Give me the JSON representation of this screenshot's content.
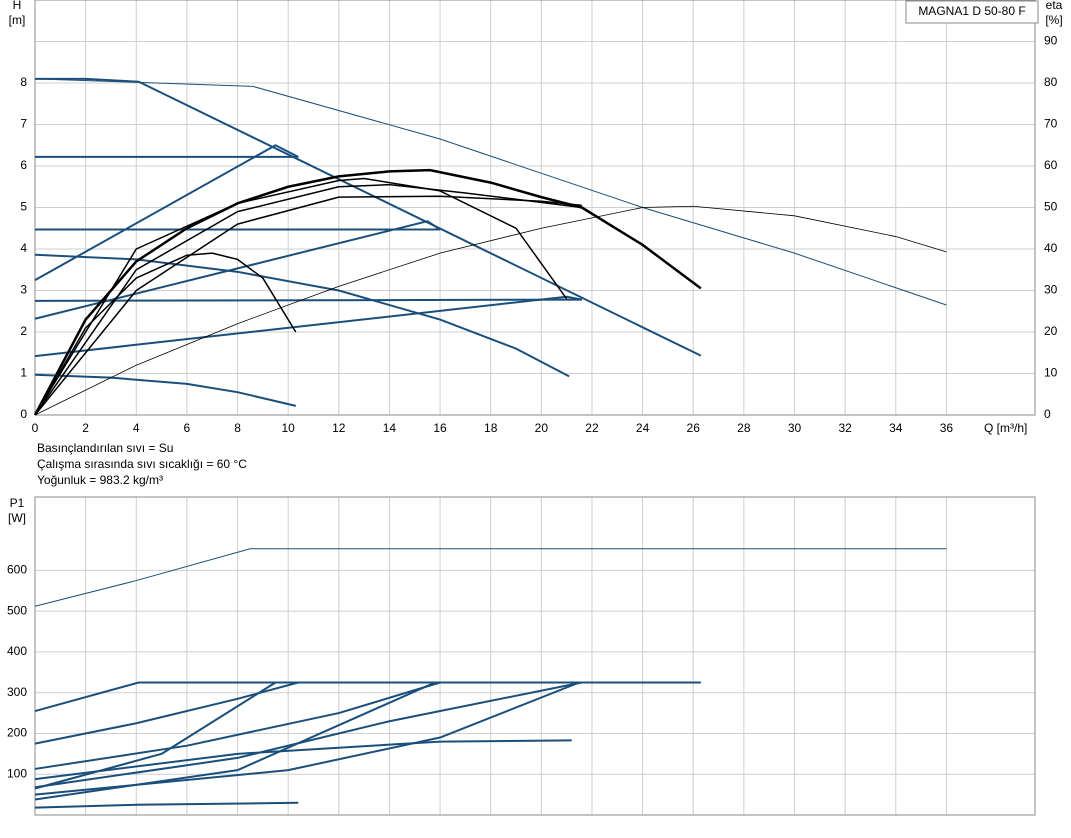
{
  "chart_data": [
    {
      "type": "line",
      "title": "MAGNA1 D 50-80 F",
      "ylabel": "H",
      "yunit": "[m]",
      "y2label": "eta",
      "y2unit": "[%]",
      "xlabel": "Q [m³/h]",
      "annotations": [
        "Basınçlandırılan sıvı = Su",
        "Çalışma sırasında sıvı sıcaklığı = 60 °C",
        "Yoğunluk = 983.2 kg/m³"
      ],
      "xlim": [
        0,
        39.5
      ],
      "xticks": [
        0,
        2,
        4,
        6,
        8,
        10,
        12,
        14,
        16,
        18,
        20,
        22,
        24,
        26,
        28,
        30,
        32,
        34,
        36
      ],
      "ylim": [
        0,
        10
      ],
      "yticks": [
        0,
        1,
        2,
        3,
        4,
        5,
        6,
        7,
        8
      ],
      "y2lim": [
        0,
        100
      ],
      "y2ticks": [
        0,
        10,
        20,
        30,
        40,
        50,
        60,
        70,
        80,
        90
      ],
      "grid": true,
      "series": [
        {
          "color": "#1b4f7b",
          "linewidth": 2,
          "x": [
            0,
            2,
            4.1,
            26.3
          ],
          "values": [
            8.1,
            8.1,
            8.03,
            1.43
          ]
        },
        {
          "color": "#1b4f7b",
          "linewidth": 2,
          "x": [
            0,
            10.4
          ],
          "values": [
            6.22,
            6.22
          ]
        },
        {
          "color": "#1b4f7b",
          "linewidth": 2,
          "x": [
            0,
            16
          ],
          "values": [
            4.47,
            4.47
          ]
        },
        {
          "color": "#1b4f7b",
          "linewidth": 2,
          "x": [
            0,
            21.6
          ],
          "values": [
            2.75,
            2.78
          ]
        },
        {
          "color": "#1b4f7b",
          "linewidth": 2,
          "x": [
            0,
            9.5,
            10.4
          ],
          "values": [
            3.25,
            6.5,
            6.22
          ]
        },
        {
          "color": "#1b4f7b",
          "linewidth": 2,
          "x": [
            0,
            15.5,
            16
          ],
          "values": [
            2.32,
            4.67,
            4.47
          ]
        },
        {
          "color": "#1b4f7b",
          "linewidth": 2,
          "x": [
            0,
            21,
            21.6
          ],
          "values": [
            1.42,
            2.85,
            2.78
          ]
        },
        {
          "color": "#1b4f7b",
          "linewidth": 2,
          "x": [
            0,
            3,
            6,
            8,
            10.3
          ],
          "values": [
            0.97,
            0.9,
            0.75,
            0.55,
            0.22
          ]
        },
        {
          "color": "#1b4f7b",
          "linewidth": 2,
          "x": [
            0,
            4,
            8,
            12,
            16,
            19,
            21.1
          ],
          "values": [
            3.86,
            3.75,
            3.45,
            3.0,
            2.3,
            1.6,
            0.93
          ]
        },
        {
          "color": "#1b4f7b",
          "linewidth": 1,
          "x": [
            0,
            8.6,
            16,
            24,
            30,
            36
          ],
          "values": [
            8.1,
            7.92,
            6.65,
            5.0,
            3.9,
            2.65
          ]
        },
        {
          "color": "#000000",
          "linewidth": 0.8,
          "axis": "y2",
          "x": [
            0,
            4,
            8,
            12,
            16,
            20,
            24,
            26,
            30,
            34,
            36
          ],
          "values": [
            0,
            12,
            22,
            31,
            39,
            45,
            50,
            50.3,
            48,
            43,
            39.3
          ]
        },
        {
          "color": "#000000",
          "linewidth": 2.5,
          "x": [
            0,
            2,
            4,
            6,
            8,
            10,
            12,
            14,
            15.6,
            18,
            20,
            21.6,
            24,
            26.3
          ],
          "values": [
            0,
            2.3,
            3.7,
            4.5,
            5.1,
            5.5,
            5.75,
            5.87,
            5.9,
            5.6,
            5.25,
            5.0,
            4.1,
            3.05
          ]
        },
        {
          "color": "#000000",
          "linewidth": 1.5,
          "x": [
            0,
            2,
            4,
            6,
            7,
            8,
            9,
            10.3
          ],
          "values": [
            0,
            2.1,
            3.3,
            3.85,
            3.9,
            3.75,
            3.3,
            2.0
          ]
        },
        {
          "color": "#000000",
          "linewidth": 1.5,
          "x": [
            0,
            4,
            8,
            12,
            13,
            16,
            19,
            21
          ],
          "values": [
            0,
            4.0,
            5.1,
            5.65,
            5.7,
            5.4,
            4.5,
            2.8
          ]
        },
        {
          "color": "#000000",
          "linewidth": 1.5,
          "x": [
            0,
            4,
            8,
            12,
            16,
            20,
            21.6
          ],
          "values": [
            0,
            3.0,
            4.6,
            5.25,
            5.27,
            5.15,
            5.05
          ]
        },
        {
          "color": "#000000",
          "linewidth": 1.5,
          "x": [
            0,
            4,
            8,
            12,
            14,
            17,
            21.6
          ],
          "values": [
            0,
            3.5,
            4.9,
            5.5,
            5.55,
            5.35,
            5.0
          ]
        }
      ]
    },
    {
      "type": "line",
      "ylabel": "P1",
      "yunit": "[W]",
      "xlim": [
        0,
        39.5
      ],
      "ylim": [
        0,
        780
      ],
      "yticks": [
        100,
        200,
        300,
        400,
        500,
        600
      ],
      "grid": true,
      "series": [
        {
          "color": "#1b4f7b",
          "linewidth": 1,
          "x": [
            0,
            4,
            8.5,
            36
          ],
          "values": [
            512,
            575,
            653,
            653
          ]
        },
        {
          "color": "#1b4f7b",
          "linewidth": 2,
          "x": [
            0,
            4.1,
            26.3
          ],
          "values": [
            255,
            325,
            325
          ]
        },
        {
          "color": "#1b4f7b",
          "linewidth": 2,
          "x": [
            0,
            4,
            8,
            10.4
          ],
          "values": [
            175,
            225,
            285,
            325
          ]
        },
        {
          "color": "#1b4f7b",
          "linewidth": 2,
          "x": [
            0,
            6,
            12,
            16
          ],
          "values": [
            113,
            170,
            250,
            325
          ]
        },
        {
          "color": "#1b4f7b",
          "linewidth": 2,
          "x": [
            0,
            8,
            14,
            21.6
          ],
          "values": [
            68,
            140,
            230,
            325
          ]
        },
        {
          "color": "#1b4f7b",
          "linewidth": 2,
          "x": [
            0,
            8,
            16,
            21.2
          ],
          "values": [
            88,
            150,
            180,
            183
          ]
        },
        {
          "color": "#1b4f7b",
          "linewidth": 2,
          "x": [
            0,
            4,
            10.4
          ],
          "values": [
            18,
            25,
            30
          ]
        },
        {
          "color": "#1b4f7b",
          "linewidth": 2,
          "x": [
            0,
            5,
            9.5
          ],
          "values": [
            65,
            150,
            325
          ]
        },
        {
          "color": "#1b4f7b",
          "linewidth": 2,
          "x": [
            0,
            8,
            15.8
          ],
          "values": [
            38,
            110,
            325
          ]
        },
        {
          "color": "#1b4f7b",
          "linewidth": 2,
          "x": [
            0,
            10,
            16,
            21.5
          ],
          "values": [
            50,
            110,
            190,
            325
          ]
        }
      ]
    }
  ]
}
